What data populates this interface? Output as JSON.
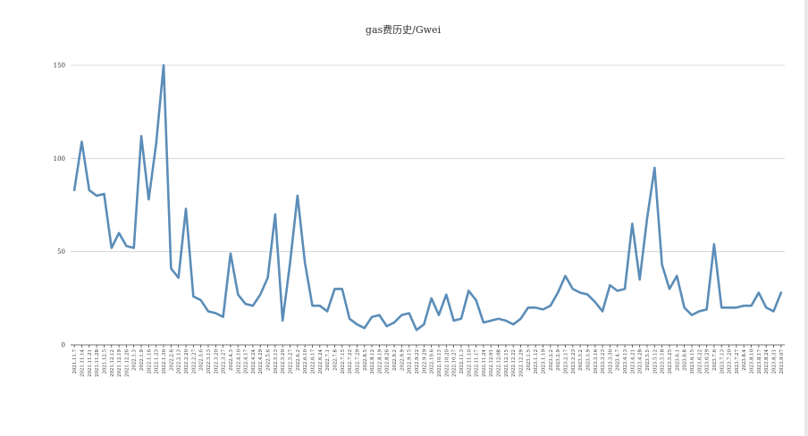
{
  "chart_data": {
    "type": "line",
    "title": "gas费历史/Gwei",
    "xlabel": "",
    "ylabel": "",
    "ylim": [
      0,
      150
    ],
    "yticks": [
      0,
      50,
      100,
      150
    ],
    "grid": true,
    "legend": "none",
    "line_color": "#5b8db8",
    "categories": [
      "2021.11.7",
      "2021.11.14",
      "2021.11.21",
      "2021.11.28",
      "2021.12.5",
      "2021.12.12",
      "2021.12.19",
      "2021.12.26",
      "2022.1.3",
      "2022.1.9",
      "2022.1.16",
      "2022.1.23",
      "2022.1.30",
      "2022.2.6",
      "2022.2.13",
      "2022.2.20",
      "2022.2.27",
      "2022.3.6",
      "2022.3.13",
      "2022.3.20",
      "2022.3.27",
      "2022.4.3",
      "2022.4.10",
      "2022.4.17",
      "2022.4.24",
      "2022.4.29",
      "2022.5.6",
      "2022.5.13",
      "2022.5.20",
      "2022.5.27",
      "2022.6.2",
      "2022.6.10",
      "2022.6.17",
      "2022.6.24",
      "2022.7.1",
      "2022.7.8",
      "2022.7.15",
      "2022.7.22",
      "2022.7.29",
      "2022.8.5",
      "2022.8.12",
      "2022.8.19",
      "2022.8.26",
      "2022.9.2",
      "2022.9.9",
      "2022.9.15",
      "2022.9.22",
      "2022.9.29",
      "2022.10.6",
      "2022.10.13",
      "2022.10.20",
      "2022.10.27",
      "2022.11.3",
      "2022.11.10",
      "2022.11.17",
      "2022.11.24",
      "2022.12.01",
      "2022.12.08",
      "2022.12.15",
      "2022.12.22",
      "2022.12.29",
      "2023.1.5",
      "2023.1.12",
      "2023.1.19",
      "2023.2.2",
      "2023.2.9",
      "2023.2.17",
      "2023.2.23",
      "2023.3.2",
      "2023.3.9",
      "2023.3.16",
      "2023.3.23",
      "2023.3.30",
      "2023.4.7",
      "2023.4.13",
      "2023.4.21",
      "2023.4.28",
      "2023.5.5",
      "2023.5.12",
      "2023.5.18",
      "2023.5.25",
      "2023.6.1",
      "2023.6.8",
      "2023.6.15",
      "2023.6.22",
      "2023.6.29",
      "2023.7.6",
      "2023.7.13",
      "2023.7.20",
      "2023.7.27",
      "2023.8.4",
      "2023.8.10",
      "2023.8.17",
      "2023.8.24",
      "2023.8.31",
      "2023.9.07"
    ],
    "series": [
      {
        "values": [
          83,
          109,
          83,
          80,
          81,
          52,
          60,
          53,
          52,
          112,
          78,
          108,
          150,
          41,
          36,
          73,
          26,
          24,
          18,
          17,
          15,
          49,
          27,
          22,
          21,
          27,
          36,
          70,
          13,
          44,
          80,
          44,
          21,
          21,
          18,
          30,
          30,
          14,
          11,
          9,
          15,
          16,
          10,
          12,
          16,
          17,
          8,
          11,
          25,
          16,
          27,
          13,
          14,
          29,
          24,
          12,
          13,
          14,
          13,
          11,
          14,
          20,
          20,
          19,
          21,
          28,
          37,
          30,
          28,
          27,
          23,
          18,
          32,
          29,
          30,
          65,
          35,
          68,
          95,
          43,
          30,
          37,
          20,
          16,
          18,
          19,
          54,
          20,
          20,
          20,
          21,
          21,
          28,
          20,
          18,
          28
        ]
      }
    ]
  }
}
